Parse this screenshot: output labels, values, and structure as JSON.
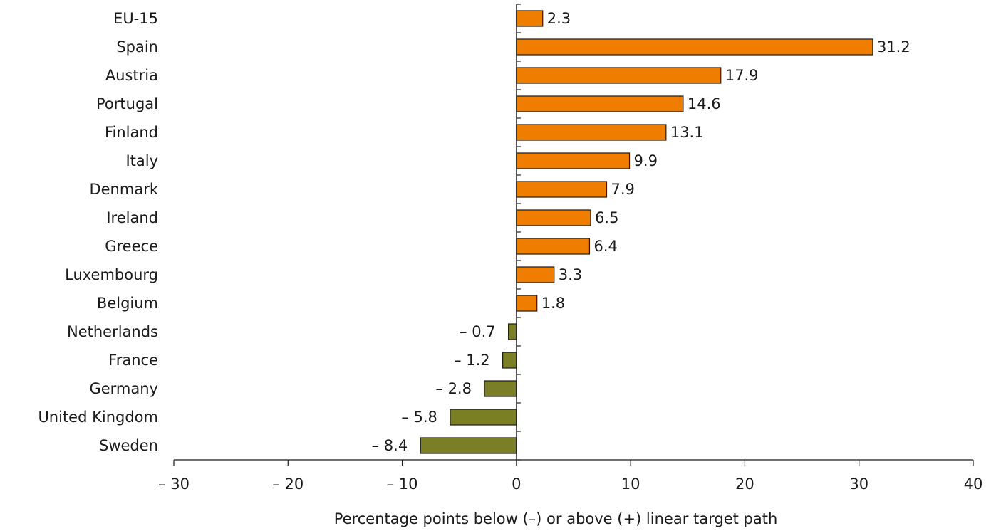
{
  "chart_data": {
    "type": "bar",
    "orientation": "horizontal",
    "categories": [
      "EU-15",
      "Spain",
      "Austria",
      "Portugal",
      "Finland",
      "Italy",
      "Denmark",
      "Ireland",
      "Greece",
      "Luxembourg",
      "Belgium",
      "Netherlands",
      "France",
      "Germany",
      "United Kingdom",
      "Sweden"
    ],
    "values": [
      2.3,
      31.2,
      17.9,
      14.6,
      13.1,
      9.9,
      7.9,
      6.5,
      6.4,
      3.3,
      1.8,
      -0.7,
      -1.2,
      -2.8,
      -5.8,
      -8.4
    ],
    "value_labels": [
      "2.3",
      "31.2",
      "17.9",
      "14.6",
      "13.1",
      "9.9",
      "7.9",
      "6.5",
      "6.4",
      "3.3",
      "1.8",
      "– 0.7",
      "– 1.2",
      "– 2.8",
      "– 5.8",
      "– 8.4"
    ],
    "xlabel": "Percentage points below (–) or above (+) linear target path",
    "xlim": [
      -30,
      40
    ],
    "xticks": [
      -30,
      -20,
      -10,
      0,
      10,
      20,
      30,
      40
    ],
    "xtick_labels": [
      "– 30",
      "– 20",
      "– 10",
      "0",
      "10",
      "20",
      "30",
      "40"
    ],
    "grid": false,
    "colors": {
      "positive": "#ef7d00",
      "negative": "#7a7f25",
      "bar_border": "#1a1a1a",
      "axis": "#1a1a1a"
    }
  }
}
